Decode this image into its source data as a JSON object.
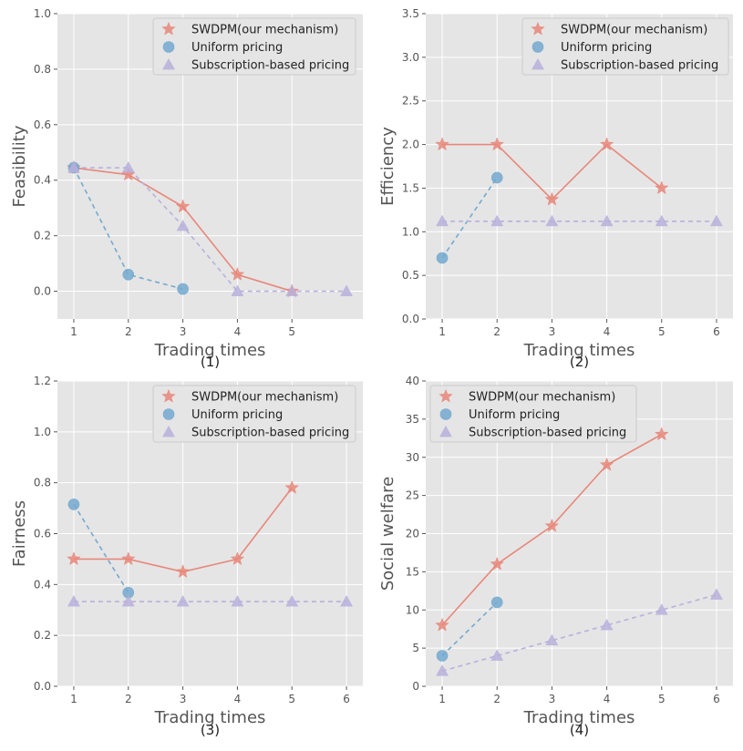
{
  "colors": {
    "swdpm": "#e8877a",
    "uniform": "#74a9cf",
    "subscription": "#b9b0dc",
    "background": "#e5e5e5",
    "grid": "#ffffff"
  },
  "chart_data": [
    {
      "type": "line",
      "caption": "(1)",
      "xlabel": "Trading times",
      "ylabel": "Feasibility",
      "xlim": [
        0.7,
        6.3
      ],
      "ylim": [
        -0.1,
        1.0
      ],
      "xticks": [
        1,
        2,
        3,
        4,
        5
      ],
      "yticks": [
        0.0,
        0.2,
        0.4,
        0.6,
        0.8,
        1.0
      ],
      "ytick_labels": [
        "0.0",
        "0.2",
        "0.4",
        "0.6",
        "0.8",
        "1.0"
      ],
      "legend": "top-right",
      "series": [
        {
          "name": "SWDPM(our mechanism)",
          "key": "swdpm",
          "marker": "star",
          "line": "solid",
          "x": [
            1,
            2,
            3,
            4,
            5
          ],
          "y": [
            0.445,
            0.42,
            0.305,
            0.06,
            0.0
          ]
        },
        {
          "name": "Uniform pricing",
          "key": "uniform",
          "marker": "circle",
          "line": "dashed",
          "x": [
            1,
            2,
            3
          ],
          "y": [
            0.445,
            0.06,
            0.008
          ]
        },
        {
          "name": "Subscription-based pricing",
          "key": "subscription",
          "marker": "triangle",
          "line": "dashed",
          "x": [
            1,
            2,
            3,
            4,
            5,
            6
          ],
          "y": [
            0.445,
            0.445,
            0.235,
            0.0,
            0.0,
            0.0
          ]
        }
      ]
    },
    {
      "type": "line",
      "caption": "(2)",
      "xlabel": "Trading times",
      "ylabel": "Efficiency",
      "xlim": [
        0.7,
        6.3
      ],
      "ylim": [
        0.0,
        3.5
      ],
      "xticks": [
        1,
        2,
        3,
        4,
        5,
        6
      ],
      "yticks": [
        0.0,
        0.5,
        1.0,
        1.5,
        2.0,
        2.5,
        3.0,
        3.5
      ],
      "ytick_labels": [
        "0.0",
        "0.5",
        "1.0",
        "1.5",
        "2.0",
        "2.5",
        "3.0",
        "3.5"
      ],
      "legend": "top-right",
      "series": [
        {
          "name": "SWDPM(our mechanism)",
          "key": "swdpm",
          "marker": "star",
          "line": "solid",
          "x": [
            1,
            2,
            3,
            4,
            5
          ],
          "y": [
            2.0,
            2.0,
            1.37,
            2.0,
            1.5
          ]
        },
        {
          "name": "Uniform pricing",
          "key": "uniform",
          "marker": "circle",
          "line": "dashed",
          "x": [
            1,
            2
          ],
          "y": [
            0.7,
            1.62
          ]
        },
        {
          "name": "Subscription-based pricing",
          "key": "subscription",
          "marker": "triangle",
          "line": "dashed",
          "x": [
            1,
            2,
            3,
            4,
            5,
            6
          ],
          "y": [
            1.12,
            1.12,
            1.12,
            1.12,
            1.12,
            1.12
          ]
        }
      ]
    },
    {
      "type": "line",
      "caption": "(3)",
      "xlabel": "Trading times",
      "ylabel": "Fairness",
      "xlim": [
        0.7,
        6.3
      ],
      "ylim": [
        0.0,
        1.2
      ],
      "xticks": [
        1,
        2,
        3,
        4,
        5,
        6
      ],
      "yticks": [
        0.0,
        0.2,
        0.4,
        0.6,
        0.8,
        1.0,
        1.2
      ],
      "ytick_labels": [
        "0.0",
        "0.2",
        "0.4",
        "0.6",
        "0.8",
        "1.0",
        "1.2"
      ],
      "legend": "top-right",
      "series": [
        {
          "name": "SWDPM(our mechanism)",
          "key": "swdpm",
          "marker": "star",
          "line": "solid",
          "x": [
            1,
            2,
            3,
            4,
            5
          ],
          "y": [
            0.5,
            0.5,
            0.45,
            0.5,
            0.78
          ]
        },
        {
          "name": "Uniform pricing",
          "key": "uniform",
          "marker": "circle",
          "line": "dashed",
          "x": [
            1,
            2
          ],
          "y": [
            0.715,
            0.368
          ]
        },
        {
          "name": "Subscription-based pricing",
          "key": "subscription",
          "marker": "triangle",
          "line": "dashed",
          "x": [
            1,
            2,
            3,
            4,
            5,
            6
          ],
          "y": [
            0.333,
            0.333,
            0.333,
            0.333,
            0.333,
            0.333
          ]
        }
      ]
    },
    {
      "type": "line",
      "caption": "(4)",
      "xlabel": "Trading times",
      "ylabel": "Social welfare",
      "xlim": [
        0.7,
        6.3
      ],
      "ylim": [
        0,
        40
      ],
      "xticks": [
        1,
        2,
        3,
        4,
        5,
        6
      ],
      "yticks": [
        0,
        5,
        10,
        15,
        20,
        25,
        30,
        35,
        40
      ],
      "ytick_labels": [
        "0",
        "5",
        "10",
        "15",
        "20",
        "25",
        "30",
        "35",
        "40"
      ],
      "legend": "top-left",
      "series": [
        {
          "name": "SWDPM(our mechanism)",
          "key": "swdpm",
          "marker": "star",
          "line": "solid",
          "x": [
            1,
            2,
            3,
            4,
            5
          ],
          "y": [
            8,
            16,
            21,
            29,
            33
          ]
        },
        {
          "name": "Uniform pricing",
          "key": "uniform",
          "marker": "circle",
          "line": "dashed",
          "x": [
            1,
            2
          ],
          "y": [
            4,
            11
          ]
        },
        {
          "name": "Subscription-based pricing",
          "key": "subscription",
          "marker": "triangle",
          "line": "dashed",
          "x": [
            1,
            2,
            3,
            4,
            5,
            6
          ],
          "y": [
            2,
            4,
            6,
            8,
            10,
            12
          ]
        }
      ]
    }
  ]
}
